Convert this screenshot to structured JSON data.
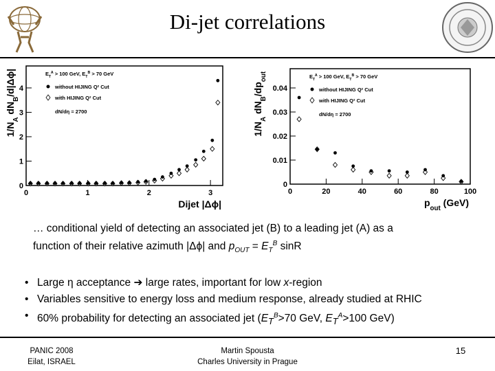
{
  "slide": {
    "title": "Di-jet correlations",
    "caption": {
      "line1": "… conditional yield of detecting an associated jet (B)  to a leading jet (A) as a",
      "line2_a": "function of their relative azimuth |",
      "line2_phi": "Δϕ",
      "line2_b": "| and ",
      "pout_p": "p",
      "pout_sub": "OUT",
      "pout_eq": " = ",
      "et_e": "E",
      "et_sub": "T",
      "et_sup": "B",
      "sinr": " sinR"
    },
    "bullets": {
      "b1_a": "Large ",
      "b1_eta": "η",
      "b1_b": " acceptance ",
      "b1_arrow": "➔",
      "b1_c": " large rates, important for low ",
      "b1_x": "x",
      "b1_d": "-region",
      "b2": "Variables sensitive to energy loss and medium response, already studied at RHIC",
      "b3_a": "60% probability for detecting an associated jet (",
      "b3_e1": "E",
      "b3_t1": "T",
      "b3_s1": "B",
      "b3_b": ">70 GeV, ",
      "b3_e2": "E",
      "b3_t2": "T",
      "b3_s2": "A",
      "b3_c": ">100 GeV)"
    },
    "footer": {
      "left_line1": "PANIC 2008",
      "left_line2": "Eilat, ISRAEL",
      "center_line1": "Martin Spousta",
      "center_line2": "Charles University in Prague",
      "page_number": "15"
    }
  },
  "colors": {
    "text": "#000000",
    "marker": "#000000",
    "axis": "#000000"
  },
  "chart_data": [
    {
      "type": "scatter",
      "ylabel": "1/N_A dN_B/d|Δϕ|",
      "xlabel": "Dijet |Δϕ|",
      "xlim": [
        0,
        3.2
      ],
      "ylim": [
        0,
        4.9
      ],
      "x_ticks": [
        "0",
        "1",
        "2",
        "3"
      ],
      "y_ticks": [
        "0",
        "1",
        "2",
        "3",
        "4"
      ],
      "legend_lines": [
        "E_T^A > 100 GeV, E_T^B > 70 GeV",
        "without HIJING Q² Cut",
        "with HIJING Q² Cut",
        "dN/dη = 2700"
      ],
      "series": [
        {
          "name": "without HIJING Q² Cut",
          "marker": "filled-circle",
          "x": [
            0.07,
            0.2,
            0.34,
            0.47,
            0.6,
            0.74,
            0.87,
            1.01,
            1.14,
            1.28,
            1.41,
            1.55,
            1.68,
            1.82,
            1.95,
            2.09,
            2.22,
            2.36,
            2.49,
            2.62,
            2.76,
            2.89,
            3.03,
            3.12
          ],
          "y": [
            0.1,
            0.1,
            0.1,
            0.1,
            0.1,
            0.1,
            0.1,
            0.1,
            0.1,
            0.1,
            0.1,
            0.12,
            0.12,
            0.15,
            0.18,
            0.25,
            0.35,
            0.5,
            0.65,
            0.8,
            1.05,
            1.4,
            1.85,
            4.3
          ]
        },
        {
          "name": "with HIJING Q² Cut",
          "marker": "open-diamond",
          "x": [
            0.07,
            0.2,
            0.34,
            0.47,
            0.6,
            0.74,
            0.87,
            1.01,
            1.14,
            1.28,
            1.41,
            1.55,
            1.68,
            1.82,
            1.95,
            2.09,
            2.22,
            2.36,
            2.49,
            2.62,
            2.76,
            2.89,
            3.03,
            3.12
          ],
          "y": [
            0.08,
            0.08,
            0.08,
            0.08,
            0.08,
            0.08,
            0.08,
            0.08,
            0.08,
            0.08,
            0.08,
            0.1,
            0.1,
            0.12,
            0.15,
            0.2,
            0.28,
            0.4,
            0.5,
            0.65,
            0.85,
            1.1,
            1.5,
            3.4
          ]
        }
      ]
    },
    {
      "type": "scatter",
      "ylabel": "1/N_A dN_B/dp_out",
      "xlabel": "p_out (GeV)",
      "xlim": [
        0,
        100
      ],
      "ylim": [
        0,
        0.048
      ],
      "x_ticks": [
        "0",
        "20",
        "40",
        "60",
        "80",
        "100"
      ],
      "y_ticks": [
        "0",
        "0.01",
        "0.02",
        "0.03",
        "0.04"
      ],
      "legend_lines": [
        "E_T^A > 100 GeV, E_T^B > 70 GeV",
        "without HIJING Q² Cut",
        "with HIJING Q² Cut",
        "dN/dη = 2700"
      ],
      "series": [
        {
          "name": "without HIJING Q² Cut",
          "marker": "filled-circle",
          "x": [
            5,
            15,
            25,
            35,
            45,
            55,
            65,
            75,
            85,
            95
          ],
          "y": [
            0.036,
            0.0145,
            0.013,
            0.0075,
            0.0055,
            0.0055,
            0.005,
            0.006,
            0.0035,
            0.0012
          ]
        },
        {
          "name": "with HIJING Q² Cut",
          "marker": "open-diamond",
          "x": [
            5,
            15,
            25,
            35,
            45,
            55,
            65,
            75,
            85,
            95
          ],
          "y": [
            0.027,
            0.0145,
            0.008,
            0.006,
            0.005,
            0.0035,
            0.0035,
            0.005,
            0.0025,
            0.001
          ]
        }
      ]
    }
  ]
}
